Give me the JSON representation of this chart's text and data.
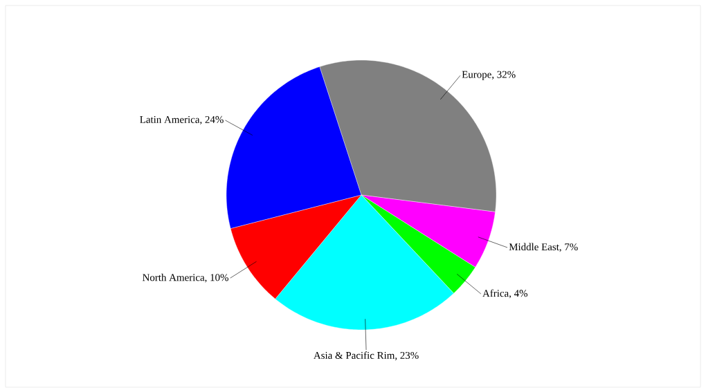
{
  "chart_data": {
    "type": "pie",
    "categories": [
      "Europe",
      "Middle East",
      "Africa",
      "Asia & Pacific Rim",
      "North America",
      "Latin America"
    ],
    "values": [
      32,
      7,
      4,
      23,
      10,
      24
    ],
    "colors": [
      "#808080",
      "#ff00ff",
      "#00ff00",
      "#00ffff",
      "#ff0000",
      "#0000ff"
    ],
    "value_labels": [
      ", 32%",
      ", 7%",
      ", 4%",
      ", 23%",
      ", 10%",
      ", 24%"
    ]
  }
}
